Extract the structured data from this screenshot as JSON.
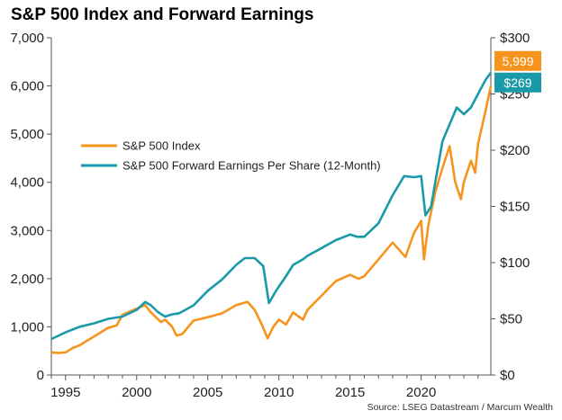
{
  "chart_data": {
    "type": "line",
    "title": "S&P 500 Index and Forward Earnings",
    "source": "Source: LSEG Datastream / Marcum Wealth",
    "xlabel": "",
    "ylabel_left": "",
    "ylabel_right": "",
    "xlim": [
      1994,
      2024.9
    ],
    "ylim_left": [
      0,
      7000
    ],
    "ylim_right": [
      0,
      300
    ],
    "x_ticks": [
      1995,
      2000,
      2005,
      2010,
      2015,
      2020
    ],
    "x_tick_labels": [
      "1995",
      "2000",
      "2005",
      "2010",
      "2015",
      "2020"
    ],
    "y_left_ticks": [
      0,
      1000,
      2000,
      3000,
      4000,
      5000,
      6000,
      7000
    ],
    "y_left_tick_labels": [
      "0",
      "1,000",
      "2,000",
      "3,000",
      "4,000",
      "5,000",
      "6,000",
      "7,000"
    ],
    "y_right_ticks": [
      0,
      50,
      100,
      150,
      200,
      250,
      300
    ],
    "y_right_tick_labels": [
      "$0",
      "$50",
      "$100",
      "$150",
      "$200",
      "$250",
      "$300"
    ],
    "grid": false,
    "legend_position": "center-left",
    "series": [
      {
        "name": "S&P 500 Index",
        "axis": "left",
        "color": "#F7941D",
        "end_label": "5,999",
        "x": [
          1994,
          1994.5,
          1995,
          1995.5,
          1996,
          1997,
          1998,
          1998.6,
          1999,
          2000,
          2000.6,
          2001,
          2001.7,
          2002,
          2002.5,
          2002.8,
          2003.2,
          2004,
          2005,
          2006,
          2007,
          2007.8,
          2008.3,
          2008.8,
          2009.2,
          2009.6,
          2010,
          2010.5,
          2011,
          2011.7,
          2012,
          2013,
          2014,
          2015,
          2015.6,
          2016,
          2017,
          2018,
          2018.9,
          2019.5,
          2020,
          2020.2,
          2020.5,
          2021,
          2021.5,
          2022,
          2022.4,
          2022.8,
          2023,
          2023.5,
          2023.8,
          2024,
          2024.5,
          2024.9
        ],
        "values": [
          470,
          460,
          470,
          560,
          620,
          800,
          980,
          1030,
          1250,
          1380,
          1450,
          1300,
          1100,
          1150,
          1000,
          820,
          850,
          1130,
          1200,
          1280,
          1450,
          1520,
          1350,
          1050,
          760,
          1000,
          1150,
          1050,
          1300,
          1150,
          1350,
          1650,
          1950,
          2080,
          2000,
          2050,
          2400,
          2750,
          2450,
          2950,
          3200,
          2400,
          3100,
          3800,
          4300,
          4750,
          4000,
          3650,
          4000,
          4450,
          4200,
          4800,
          5450,
          5999
        ]
      },
      {
        "name": "S&P 500 Forward Earnings Per Share (12-Month)",
        "axis": "right",
        "color": "#1A9AA8",
        "end_label": "$269",
        "x": [
          1994,
          1995,
          1996,
          1997,
          1998,
          1999,
          2000,
          2000.6,
          2001,
          2001.5,
          2002,
          2002.5,
          2003,
          2004,
          2005,
          2006,
          2007,
          2007.6,
          2008.3,
          2008.9,
          2009.3,
          2009.8,
          2010.5,
          2011,
          2011.7,
          2012,
          2013,
          2014,
          2015,
          2015.5,
          2016,
          2017,
          2018,
          2018.8,
          2019.5,
          2020,
          2020.3,
          2020.7,
          2021,
          2021.5,
          2022,
          2022.5,
          2023,
          2023.5,
          2024,
          2024.5,
          2024.9
        ],
        "values": [
          32,
          38,
          43,
          46,
          50,
          52,
          58,
          65,
          62,
          56,
          52,
          54,
          55,
          62,
          75,
          85,
          98,
          104,
          104,
          97,
          64,
          75,
          88,
          98,
          103,
          106,
          113,
          120,
          125,
          123,
          123,
          135,
          160,
          177,
          176,
          177,
          142,
          150,
          172,
          208,
          223,
          238,
          232,
          238,
          250,
          262,
          269
        ]
      }
    ]
  }
}
